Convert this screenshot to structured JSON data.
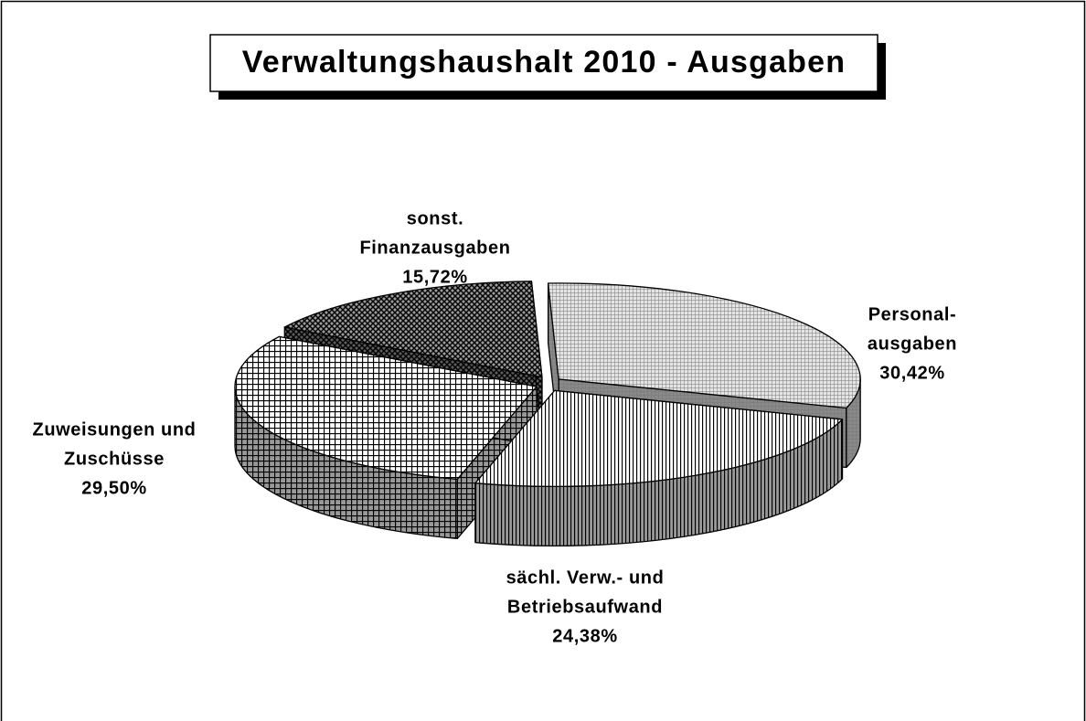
{
  "chart_data": {
    "type": "pie3d",
    "title": "Verwaltungshaushalt 2010 - Ausgaben",
    "categories": [
      [
        "Personal-",
        "ausgaben"
      ],
      [
        "sächl. Verw.- und",
        "Betriebsaufwand"
      ],
      [
        "Zuweisungen und",
        "Zuschüsse"
      ],
      [
        "sonst.",
        "Finanzausgaben"
      ]
    ],
    "values": [
      30.42,
      24.38,
      29.5,
      15.72
    ],
    "value_labels": [
      "30,42%",
      "24,38%",
      "29,50%",
      "15,72%"
    ],
    "colors": [
      "#e4e4e4",
      "#ffffff",
      "#ffffff",
      "#9a9a9a"
    ]
  }
}
